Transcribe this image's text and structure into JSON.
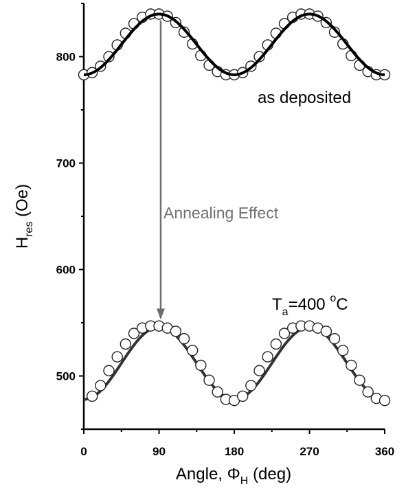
{
  "chart_data": {
    "type": "line",
    "xlabel": "Angle, Φ",
    "xlabel_subscript": "H",
    "xlabel_unit": " (deg)",
    "ylabel": "H",
    "ylabel_subscript": "res",
    "ylabel_unit": " (Oe)",
    "xlim": [
      0,
      360
    ],
    "ylim": [
      450,
      850
    ],
    "x_ticks": [
      0,
      90,
      180,
      270,
      360
    ],
    "y_ticks": [
      500,
      600,
      700,
      800
    ],
    "grid": false,
    "series": [
      {
        "kind": "fit-line",
        "color": "#000000",
        "model": {
          "min": 783,
          "max": 840,
          "period": 180,
          "phase": 0
        }
      },
      {
        "kind": "markers",
        "marker": "open-circle",
        "x": [
          0,
          10,
          20,
          30,
          40,
          50,
          60,
          70,
          80,
          90,
          100,
          110,
          120,
          130,
          140,
          150,
          160,
          170,
          180,
          190,
          200,
          210,
          220,
          230,
          240,
          250,
          260,
          270,
          280,
          290,
          300,
          310,
          320,
          330,
          340,
          350,
          360
        ],
        "y": [
          783,
          785,
          791,
          800,
          811,
          822,
          831,
          837,
          840,
          840,
          838,
          832,
          823,
          812,
          801,
          792,
          786,
          783,
          783,
          785,
          791,
          800,
          811,
          822,
          831,
          837,
          840,
          840,
          838,
          832,
          823,
          812,
          801,
          792,
          786,
          783,
          783
        ]
      },
      {
        "kind": "fit-line",
        "color": "#333333",
        "model": {
          "min": 478,
          "max": 546,
          "period": 180,
          "phase": 0
        }
      },
      {
        "kind": "markers",
        "marker": "open-circle",
        "x": [
          10,
          20,
          30,
          40,
          50,
          60,
          70,
          80,
          90,
          100,
          110,
          120,
          130,
          140,
          150,
          160,
          170,
          180,
          190,
          200,
          210,
          220,
          230,
          240,
          250,
          260,
          270,
          280,
          290,
          300,
          310,
          320,
          330,
          340,
          350,
          360
        ],
        "y": [
          481,
          491,
          505,
          518,
          530,
          540,
          545,
          547,
          547,
          545,
          542,
          535,
          524,
          510,
          496,
          485,
          478,
          477,
          481,
          491,
          505,
          518,
          530,
          540,
          545,
          547,
          547,
          545,
          542,
          535,
          524,
          510,
          496,
          485,
          479,
          477
        ]
      }
    ],
    "annotations": [
      {
        "text": "as deposited"
      },
      {
        "text": "Annealing Effect",
        "arrow_from": [
          92,
          834
        ],
        "arrow_to": [
          92,
          553
        ]
      },
      {
        "text": "T",
        "subscript": "a",
        "suffix": "=400 ",
        "superscript": "o",
        "tail": "C"
      }
    ]
  }
}
